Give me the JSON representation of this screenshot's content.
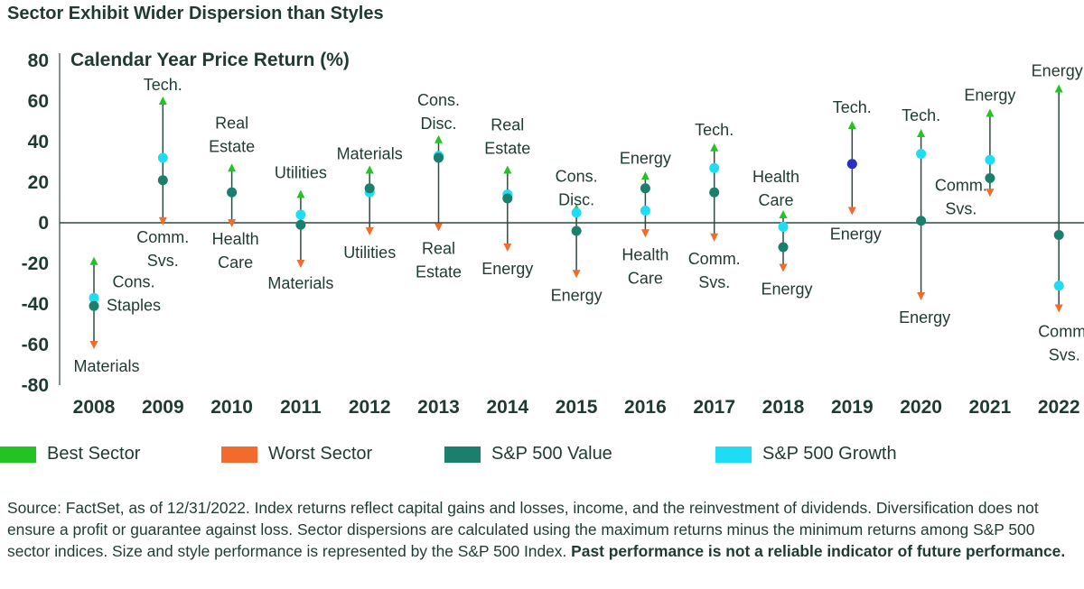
{
  "title": "Sector Exhibit Wider Dispersion than Styles",
  "chart_data": {
    "type": "scatter",
    "title": "Calendar Year Price Return (%)",
    "ylim": [
      -80,
      80
    ],
    "yticks": [
      80,
      60,
      40,
      20,
      0,
      -20,
      -40,
      -60,
      -80
    ],
    "categories": [
      "2008",
      "2009",
      "2010",
      "2011",
      "2012",
      "2013",
      "2014",
      "2015",
      "2016",
      "2017",
      "2018",
      "2019",
      "2020",
      "2021",
      "2022"
    ],
    "series": [
      {
        "name": "Best Sector",
        "values": [
          -19,
          60,
          27,
          14,
          26,
          41,
          26,
          7,
          23,
          37,
          4,
          48,
          44,
          54,
          66
        ]
      },
      {
        "name": "Worst Sector",
        "values": [
          -60,
          1,
          0,
          -20,
          -4,
          -2,
          -12,
          -25,
          -5,
          -7,
          -22,
          6,
          -36,
          15,
          -42
        ]
      },
      {
        "name": "S&P 500 Value",
        "values": [
          -41,
          21,
          15,
          -1,
          17,
          32,
          12,
          -4,
          17,
          15,
          -12,
          29,
          1,
          22,
          -6
        ]
      },
      {
        "name": "S&P 500 Growth",
        "values": [
          -37,
          32,
          15,
          4,
          15,
          33,
          14,
          5,
          6,
          27,
          -2,
          29,
          34,
          31,
          -31
        ]
      }
    ],
    "best_labels": [
      "Cons.\nStaples",
      "Tech.",
      "Real\nEstate",
      "Utilities",
      "Materials",
      "Cons.\nDisc.",
      "Real\nEstate",
      "Cons.\nDisc.",
      "Energy",
      "Tech.",
      "Health\nCare",
      "Tech.",
      "Tech.",
      "Energy",
      "Energy"
    ],
    "worst_labels": [
      "Materials",
      "Comm.\nSvs.",
      "Health\nCare",
      "Materials",
      "Utilities",
      "Real\nEstate",
      "Energy",
      "Energy",
      "Health\nCare",
      "Comm.\nSvs.",
      "Energy",
      "Energy",
      "Energy",
      "Comm.\nSvs.",
      "Comm.\nSvs."
    ],
    "legend_position": "bottom",
    "colors": {
      "best": "#22c322",
      "worst": "#f26b2a",
      "value": "#1a7f6c",
      "growth": "#1fdcf5",
      "value_2019": "#2a2fbf",
      "line": "#2f4a42",
      "text": "#1f3a33"
    }
  },
  "legend": [
    {
      "label": "Best Sector",
      "color": "#22c322"
    },
    {
      "label": "Worst Sector",
      "color": "#f26b2a"
    },
    {
      "label": "S&P 500 Value",
      "color": "#1a7f6c"
    },
    {
      "label": "S&P 500 Growth",
      "color": "#1fdcf5"
    }
  ],
  "source": {
    "text": "Source: FactSet, as of 12/31/2022. Index returns reflect capital gains and losses, income, and the reinvestment of dividends. Diversification does not ensure a profit or guarantee against loss. Sector dispersions are calculated using the maximum returns minus the minimum returns among S&P 500 sector indices. Size and style performance is represented by the S&P 500 Index.",
    "bold": "Past performance is not a reliable indicator of future performance."
  }
}
